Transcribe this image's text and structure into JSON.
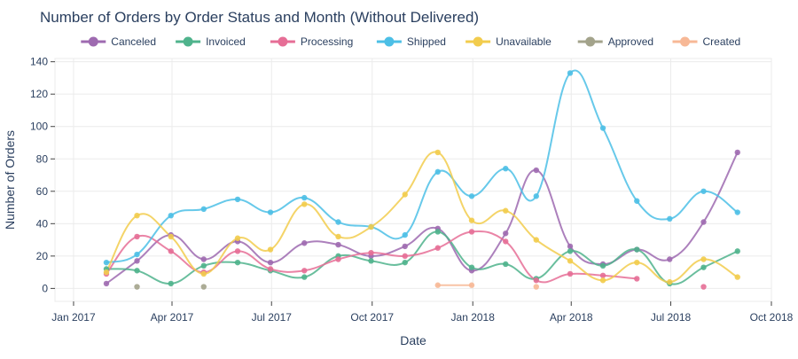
{
  "chart_data": {
    "type": "line",
    "title": "Number of Orders by Order Status and Month (Without Delivered)",
    "xlabel": "Date",
    "ylabel": "Number of Orders",
    "x_axis": {
      "min": "2016-12-15",
      "max": "2018-10-01",
      "ticks": [
        {
          "date": "2017-01-01",
          "label": "Jan 2017"
        },
        {
          "date": "2017-04-01",
          "label": "Apr 2017"
        },
        {
          "date": "2017-07-01",
          "label": "Jul 2017"
        },
        {
          "date": "2017-10-01",
          "label": "Oct 2017"
        },
        {
          "date": "2018-01-01",
          "label": "Jan 2018"
        },
        {
          "date": "2018-04-01",
          "label": "Apr 2018"
        },
        {
          "date": "2018-07-01",
          "label": "Jul 2018"
        },
        {
          "date": "2018-10-01",
          "label": "Oct 2018"
        }
      ]
    },
    "y_axis": {
      "min": -8,
      "max": 142,
      "ticks": [
        0,
        20,
        40,
        60,
        80,
        100,
        120,
        140
      ]
    },
    "grid": true,
    "legend_position": "top",
    "series": [
      {
        "name": "Canceled",
        "color": "#9e6ab0",
        "points": [
          [
            "2017-01-31",
            3
          ],
          [
            "2017-02-28",
            17
          ],
          [
            "2017-03-31",
            33
          ],
          [
            "2017-04-30",
            18
          ],
          [
            "2017-05-31",
            29
          ],
          [
            "2017-06-30",
            16
          ],
          [
            "2017-07-31",
            28
          ],
          [
            "2017-08-31",
            27
          ],
          [
            "2017-09-30",
            20
          ],
          [
            "2017-10-31",
            26
          ],
          [
            "2017-11-30",
            37
          ],
          [
            "2017-12-31",
            11
          ],
          [
            "2018-01-31",
            34
          ],
          [
            "2018-02-28",
            73
          ],
          [
            "2018-03-31",
            26
          ],
          [
            "2018-04-30",
            15
          ],
          [
            "2018-05-31",
            24
          ],
          [
            "2018-06-30",
            18
          ],
          [
            "2018-07-31",
            41
          ],
          [
            "2018-08-31",
            84
          ]
        ]
      },
      {
        "name": "Invoiced",
        "color": "#4fb38c",
        "points": [
          [
            "2017-01-31",
            12
          ],
          [
            "2017-02-28",
            11
          ],
          [
            "2017-03-31",
            3
          ],
          [
            "2017-04-30",
            14
          ],
          [
            "2017-05-31",
            16
          ],
          [
            "2017-06-30",
            11
          ],
          [
            "2017-07-31",
            7
          ],
          [
            "2017-08-31",
            20
          ],
          [
            "2017-09-30",
            17
          ],
          [
            "2017-10-31",
            16
          ],
          [
            "2017-11-30",
            35
          ],
          [
            "2017-12-31",
            13
          ],
          [
            "2018-01-31",
            15
          ],
          [
            "2018-02-28",
            6
          ],
          [
            "2018-03-31",
            23
          ],
          [
            "2018-04-30",
            14
          ],
          [
            "2018-05-31",
            24
          ],
          [
            "2018-06-30",
            3
          ],
          [
            "2018-07-31",
            13
          ],
          [
            "2018-08-31",
            23
          ]
        ]
      },
      {
        "name": "Processing",
        "color": "#e66e96",
        "points": [
          [
            "2017-01-31",
            9
          ],
          [
            "2017-02-28",
            32
          ],
          [
            "2017-03-31",
            23
          ],
          [
            "2017-04-30",
            10
          ],
          [
            "2017-05-31",
            23
          ],
          [
            "2017-06-30",
            12
          ],
          [
            "2017-07-31",
            11
          ],
          [
            "2017-08-31",
            18
          ],
          [
            "2017-09-30",
            22
          ],
          [
            "2017-10-31",
            20
          ],
          [
            "2017-11-30",
            25
          ],
          [
            "2017-12-31",
            35
          ],
          [
            "2018-01-31",
            29
          ],
          [
            "2018-02-28",
            5
          ],
          [
            "2018-03-31",
            9
          ],
          [
            "2018-04-30",
            8
          ],
          [
            "2018-05-31",
            6
          ],
          [
            null,
            null
          ],
          [
            "2018-07-31",
            1
          ]
        ]
      },
      {
        "name": "Shipped",
        "color": "#4cbfe6",
        "points": [
          [
            "2017-01-31",
            16
          ],
          [
            "2017-02-28",
            21
          ],
          [
            "2017-03-31",
            45
          ],
          [
            "2017-04-30",
            49
          ],
          [
            "2017-05-31",
            55
          ],
          [
            "2017-06-30",
            47
          ],
          [
            "2017-07-31",
            56
          ],
          [
            "2017-08-31",
            41
          ],
          [
            "2017-09-30",
            38
          ],
          [
            "2017-10-31",
            33
          ],
          [
            "2017-11-30",
            72
          ],
          [
            "2017-12-31",
            57
          ],
          [
            "2018-01-31",
            74
          ],
          [
            "2018-02-28",
            57
          ],
          [
            "2018-03-31",
            133
          ],
          [
            "2018-04-30",
            99
          ],
          [
            "2018-05-31",
            54
          ],
          [
            "2018-06-30",
            43
          ],
          [
            "2018-07-31",
            60
          ],
          [
            "2018-08-31",
            47
          ]
        ]
      },
      {
        "name": "Unavailable",
        "color": "#f2cc4d",
        "points": [
          [
            "2017-01-31",
            10
          ],
          [
            "2017-02-28",
            45
          ],
          [
            "2017-03-31",
            32
          ],
          [
            "2017-04-30",
            9
          ],
          [
            "2017-05-31",
            31
          ],
          [
            "2017-06-30",
            24
          ],
          [
            "2017-07-31",
            52
          ],
          [
            "2017-08-31",
            32
          ],
          [
            "2017-09-30",
            38
          ],
          [
            "2017-10-31",
            58
          ],
          [
            "2017-11-30",
            84
          ],
          [
            "2017-12-31",
            42
          ],
          [
            "2018-01-31",
            48
          ],
          [
            "2018-02-28",
            30
          ],
          [
            "2018-03-31",
            17
          ],
          [
            "2018-04-30",
            5
          ],
          [
            "2018-05-31",
            16
          ],
          [
            "2018-06-30",
            4
          ],
          [
            "2018-07-31",
            18
          ],
          [
            "2018-08-31",
            7
          ]
        ]
      },
      {
        "name": "Approved",
        "color": "#a3a38b",
        "points": [
          [
            "2017-02-28",
            1
          ],
          [
            null,
            null
          ],
          [
            "2017-04-30",
            1
          ]
        ]
      },
      {
        "name": "Created",
        "color": "#f7b896",
        "points": [
          [
            "2017-11-30",
            2
          ],
          [
            "2017-12-31",
            2
          ],
          [
            null,
            null
          ],
          [
            "2018-02-28",
            1
          ]
        ]
      }
    ]
  }
}
